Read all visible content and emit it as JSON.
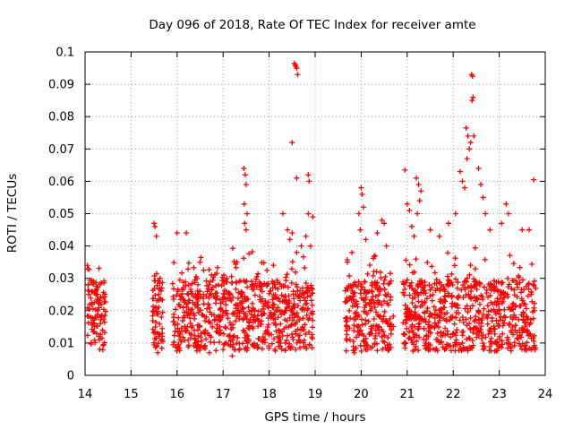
{
  "chart_data": {
    "type": "scatter",
    "title": "Day 096 of 2018, Rate Of TEC Index for receiver amte",
    "xlabel": "GPS time / hours",
    "ylabel": "ROTI / TECUs",
    "xlim": [
      14,
      24
    ],
    "ylim": [
      0,
      0.1
    ],
    "x_ticks": [
      "14",
      "15",
      "16",
      "17",
      "18",
      "19",
      "20",
      "21",
      "22",
      "23",
      "24"
    ],
    "y_ticks": [
      "0",
      "0.01",
      "0.02",
      "0.03",
      "0.04",
      "0.05",
      "0.06",
      "0.07",
      "0.08",
      "0.09",
      "0.1"
    ],
    "grid": true,
    "marker": "+",
    "series_color": "#ff0000",
    "coverage_hours": [
      [
        14.05,
        14.45
      ],
      [
        15.45,
        15.7
      ],
      [
        15.9,
        18.95
      ],
      [
        19.65,
        20.7
      ],
      [
        20.9,
        23.8
      ]
    ],
    "series": [
      {
        "name": "ROTI",
        "points": [
          [
            14.05,
            0.034
          ],
          [
            14.06,
            0.033
          ],
          [
            14.08,
            0.025
          ],
          [
            14.1,
            0.022
          ],
          [
            14.07,
            0.028
          ],
          [
            14.22,
            0.018
          ],
          [
            14.25,
            0.013
          ],
          [
            14.28,
            0.02
          ],
          [
            14.3,
            0.012
          ],
          [
            14.33,
            0.016
          ],
          [
            14.35,
            0.022
          ],
          [
            14.38,
            0.014
          ],
          [
            15.5,
            0.047
          ],
          [
            15.52,
            0.046
          ],
          [
            15.55,
            0.043
          ],
          [
            15.5,
            0.02
          ],
          [
            15.53,
            0.015
          ],
          [
            15.56,
            0.009
          ],
          [
            15.6,
            0.025
          ],
          [
            15.63,
            0.03
          ],
          [
            15.66,
            0.018
          ],
          [
            15.58,
            0.007
          ],
          [
            16.0,
            0.044
          ],
          [
            16.2,
            0.044
          ],
          [
            16.5,
            0.035
          ],
          [
            16.9,
            0.028
          ],
          [
            17.3,
            0.035
          ],
          [
            17.45,
            0.064
          ],
          [
            17.48,
            0.062
          ],
          [
            17.5,
            0.059
          ],
          [
            17.46,
            0.053
          ],
          [
            17.52,
            0.05
          ],
          [
            17.47,
            0.047
          ],
          [
            17.5,
            0.045
          ],
          [
            17.2,
            0.006
          ],
          [
            17.25,
            0.008
          ],
          [
            17.0,
            0.008
          ],
          [
            16.7,
            0.007
          ],
          [
            18.3,
            0.05
          ],
          [
            18.4,
            0.045
          ],
          [
            18.45,
            0.042
          ],
          [
            18.5,
            0.044
          ],
          [
            18.6,
            0.038
          ],
          [
            18.7,
            0.04
          ],
          [
            18.8,
            0.043
          ],
          [
            18.9,
            0.04
          ],
          [
            18.55,
            0.0965
          ],
          [
            18.57,
            0.096
          ],
          [
            18.6,
            0.095
          ],
          [
            18.62,
            0.093
          ],
          [
            18.58,
            0.0955
          ],
          [
            18.5,
            0.072
          ],
          [
            18.6,
            0.061
          ],
          [
            18.85,
            0.062
          ],
          [
            18.87,
            0.06
          ],
          [
            18.85,
            0.05
          ],
          [
            18.95,
            0.049
          ],
          [
            19.7,
            0.035
          ],
          [
            19.8,
            0.038
          ],
          [
            19.95,
            0.05
          ],
          [
            20.0,
            0.058
          ],
          [
            20.02,
            0.056
          ],
          [
            20.05,
            0.052
          ],
          [
            19.98,
            0.045
          ],
          [
            20.1,
            0.042
          ],
          [
            20.35,
            0.044
          ],
          [
            20.45,
            0.048
          ],
          [
            20.5,
            0.047
          ],
          [
            20.55,
            0.04
          ],
          [
            20.3,
            0.037
          ],
          [
            19.85,
            0.007
          ],
          [
            20.1,
            0.008
          ],
          [
            20.6,
            0.008
          ],
          [
            20.95,
            0.0635
          ],
          [
            21.0,
            0.053
          ],
          [
            21.05,
            0.051
          ],
          [
            21.1,
            0.046
          ],
          [
            21.15,
            0.043
          ],
          [
            21.2,
            0.061
          ],
          [
            21.25,
            0.059
          ],
          [
            21.3,
            0.057
          ],
          [
            21.27,
            0.054
          ],
          [
            21.22,
            0.05
          ],
          [
            21.5,
            0.045
          ],
          [
            21.7,
            0.043
          ],
          [
            21.9,
            0.047
          ],
          [
            22.05,
            0.05
          ],
          [
            22.15,
            0.063
          ],
          [
            22.2,
            0.06
          ],
          [
            22.25,
            0.058
          ],
          [
            22.3,
            0.067
          ],
          [
            22.35,
            0.07
          ],
          [
            22.28,
            0.0765
          ],
          [
            22.32,
            0.074
          ],
          [
            22.38,
            0.072
          ],
          [
            22.4,
            0.093
          ],
          [
            22.42,
            0.0925
          ],
          [
            22.43,
            0.086
          ],
          [
            22.41,
            0.085
          ],
          [
            22.45,
            0.074
          ],
          [
            22.55,
            0.064
          ],
          [
            22.6,
            0.059
          ],
          [
            22.65,
            0.055
          ],
          [
            22.7,
            0.05
          ],
          [
            22.8,
            0.045
          ],
          [
            23.05,
            0.047
          ],
          [
            23.15,
            0.053
          ],
          [
            23.2,
            0.05
          ],
          [
            23.5,
            0.045
          ],
          [
            23.65,
            0.045
          ],
          [
            23.75,
            0.0605
          ],
          [
            23.55,
            0.008
          ],
          [
            23.7,
            0.008
          ],
          [
            22.0,
            0.009
          ],
          [
            21.4,
            0.01
          ]
        ]
      }
    ]
  }
}
